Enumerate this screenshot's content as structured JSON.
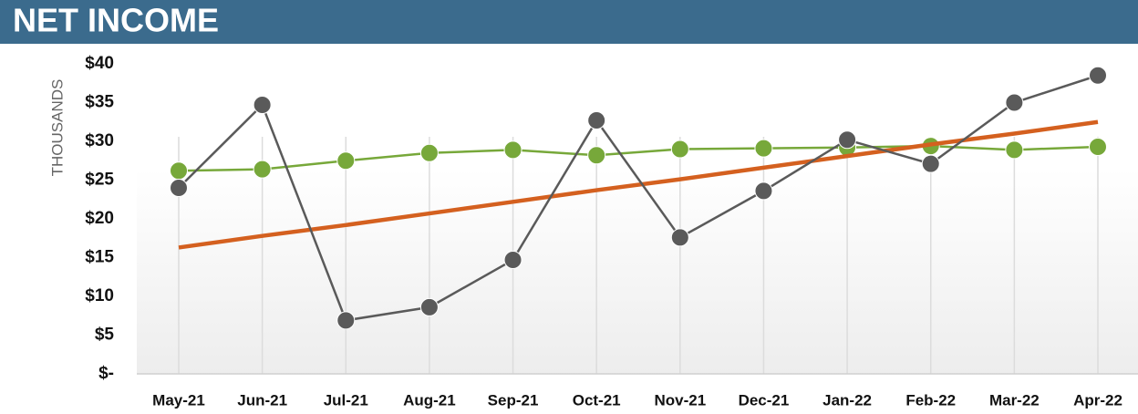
{
  "chart_data": {
    "type": "line",
    "title": "NET INCOME",
    "y_label": "THOUSANDS",
    "categories": [
      "May-21",
      "Jun-21",
      "Jul-21",
      "Aug-21",
      "Sep-21",
      "Oct-21",
      "Nov-21",
      "Dec-21",
      "Jan-22",
      "Feb-22",
      "Mar-22",
      "Apr-22"
    ],
    "series": [
      {
        "color": "#77a83a",
        "values": [
          26.2,
          26.4,
          27.5,
          28.5,
          28.9,
          28.2,
          29.0,
          29.1,
          29.2,
          29.4,
          28.9,
          29.3
        ]
      },
      {
        "color": "#d4601f",
        "values": [
          16.3,
          17.8,
          19.2,
          20.7,
          22.2,
          23.7,
          25.1,
          26.6,
          28.1,
          29.6,
          31.0,
          32.5
        ]
      },
      {
        "color": "#5a5a5a",
        "values": [
          24.0,
          34.7,
          6.9,
          8.6,
          14.7,
          32.7,
          17.6,
          23.6,
          30.2,
          27.1,
          35.0,
          38.5
        ]
      }
    ],
    "ylim": [
      0,
      40
    ],
    "yticks": [
      {
        "value": 0,
        "label": "$-"
      },
      {
        "value": 5,
        "label": "$5"
      },
      {
        "value": 10,
        "label": "$10"
      },
      {
        "value": 15,
        "label": "$15"
      },
      {
        "value": 20,
        "label": "$20"
      },
      {
        "value": 25,
        "label": "$25"
      },
      {
        "value": 30,
        "label": "$30"
      },
      {
        "value": 35,
        "label": "$35"
      },
      {
        "value": 40,
        "label": "$40"
      }
    ],
    "grid": true
  }
}
